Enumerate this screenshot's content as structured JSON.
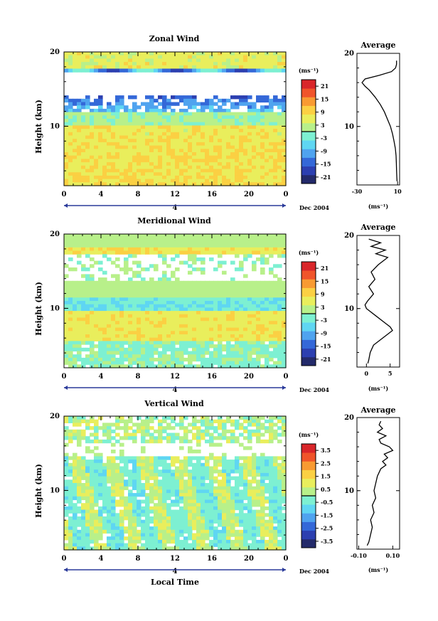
{
  "figure": {
    "x_axis_label": "Local Time",
    "date_label": "Dec 2004",
    "day_label": "4",
    "y_axis_label": "Height (km)",
    "average_title": "Average",
    "unit_label": "(ms⁻¹)"
  },
  "palette": [
    "#232a6a",
    "#2c3fb0",
    "#3468d8",
    "#4fa3ef",
    "#5fd6f2",
    "#7df0d2",
    "#b8f08a",
    "#e9ee5c",
    "#fbd043",
    "#f89a32",
    "#f0542a",
    "#d9262a"
  ],
  "chart_data": [
    {
      "type": "heatmap",
      "title": "Zonal Wind",
      "xlabel": "",
      "ylabel": "Height (km)",
      "x_ticks": [
        "0",
        "4",
        "8",
        "12",
        "16",
        "20",
        "0"
      ],
      "y_ticks": [
        "20",
        "10"
      ],
      "xlim": [
        0,
        24
      ],
      "ylim": [
        2,
        20
      ],
      "colorbar": {
        "unit": "(ms⁻¹)",
        "labels": [
          "21",
          "15",
          "9",
          "3",
          "-3",
          "-9",
          "-15",
          "-21"
        ],
        "range": [
          -24,
          24
        ]
      },
      "average_profile": {
        "title": "Average",
        "xlabel": "(ms⁻¹)",
        "x_ticks": [
          "-30",
          "10"
        ],
        "xlim": [
          -30,
          12
        ],
        "y_ticks": [
          "20",
          "10"
        ],
        "heights": [
          2.5,
          3,
          4,
          5,
          6,
          7,
          8,
          9,
          10,
          11,
          12,
          13,
          14,
          15,
          15.5,
          16,
          16.5,
          17,
          17.5,
          18,
          18.5,
          19
        ],
        "values": [
          9.5,
          9.3,
          9.0,
          8.8,
          8.5,
          7.8,
          6.5,
          5,
          3,
          0,
          -3,
          -7,
          -12,
          -18,
          -22,
          -25,
          -22,
          -8,
          4,
          8,
          9,
          9
        ]
      }
    },
    {
      "type": "heatmap",
      "title": "Meridional Wind",
      "xlabel": "",
      "ylabel": "Height (km)",
      "x_ticks": [
        "0",
        "4",
        "8",
        "12",
        "16",
        "20",
        "0"
      ],
      "y_ticks": [
        "20",
        "10"
      ],
      "xlim": [
        0,
        24
      ],
      "ylim": [
        2,
        20
      ],
      "colorbar": {
        "unit": "(ms⁻¹)",
        "labels": [
          "21",
          "15",
          "9",
          "3",
          "-3",
          "-9",
          "-15",
          "-21"
        ],
        "range": [
          -24,
          24
        ]
      },
      "average_profile": {
        "title": "Average",
        "xlabel": "(ms⁻¹)",
        "x_ticks": [
          "0",
          "5"
        ],
        "xlim": [
          -2,
          7
        ],
        "y_ticks": [
          "20",
          "10"
        ],
        "heights": [
          2.5,
          3,
          4,
          5,
          6,
          7,
          7.5,
          8,
          9,
          10,
          10.5,
          11,
          12,
          13,
          14,
          15,
          16,
          17,
          17.5,
          18,
          18.5,
          19,
          19.5
        ],
        "values": [
          0.3,
          0.5,
          0.8,
          1.5,
          3.5,
          5.5,
          5.0,
          4.0,
          2,
          0,
          -0.3,
          0.2,
          1.5,
          0.5,
          1.8,
          1.0,
          2.5,
          4.5,
          2.0,
          4.0,
          1.0,
          3.0,
          0.5
        ]
      }
    },
    {
      "type": "heatmap",
      "title": "Vertical Wind",
      "xlabel": "Local Time",
      "ylabel": "Height (km)",
      "x_ticks": [
        "0",
        "4",
        "8",
        "12",
        "16",
        "20",
        "0"
      ],
      "y_ticks": [
        "20",
        "10"
      ],
      "xlim": [
        0,
        24
      ],
      "ylim": [
        2,
        20
      ],
      "colorbar": {
        "unit": "(ms⁻¹)",
        "labels": [
          "3.5",
          "2.5",
          "1.5",
          "0.5",
          "-0.5",
          "-1.5",
          "-2.5",
          "-3.5"
        ],
        "range": [
          -4,
          4
        ]
      },
      "average_profile": {
        "title": "Average",
        "xlabel": "(ms⁻¹)",
        "x_ticks": [
          "-0.10",
          "0.10"
        ],
        "xlim": [
          -0.11,
          0.14
        ],
        "y_ticks": [
          "20",
          "10"
        ],
        "heights": [
          2.5,
          3,
          4,
          5,
          6,
          7,
          8,
          9,
          10,
          11,
          12,
          13,
          13.5,
          14,
          14.5,
          15,
          15.5,
          16,
          16.5,
          17,
          17.5,
          18,
          18.5,
          19,
          19.5
        ],
        "values": [
          -0.05,
          -0.04,
          -0.03,
          -0.02,
          -0.03,
          -0.01,
          -0.02,
          0.0,
          -0.01,
          0.0,
          0.01,
          0.03,
          0.06,
          0.04,
          0.07,
          0.05,
          0.1,
          0.08,
          0.03,
          0.02,
          0.06,
          0.01,
          0.04,
          0.02,
          0.03
        ]
      }
    }
  ]
}
